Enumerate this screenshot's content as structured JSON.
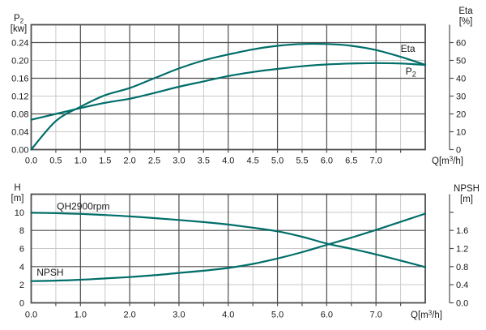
{
  "colors": {
    "curve": "#006e69",
    "grid_dark": "#4d4d4d",
    "grid_light": "#c9c9c9",
    "text": "#1a1a1a",
    "background": "#ffffff"
  },
  "chart_data": [
    {
      "type": "line",
      "name": "power-efficiency-vs-flow",
      "x": [
        0,
        0.5,
        1,
        1.5,
        2,
        2.5,
        3,
        3.5,
        4,
        4.5,
        5,
        5.5,
        6,
        6.5,
        7,
        7.5,
        8
      ],
      "x_axis": {
        "label": {
          "pre": "Q[m",
          "sup": "3",
          "post": "/h]"
        },
        "range": [
          0,
          8
        ],
        "tick_label_values": [
          0,
          0.5,
          1,
          1.5,
          2,
          2.5,
          3,
          3.5,
          4,
          4.5,
          5,
          5.5,
          6,
          6.5,
          7
        ],
        "tick_labels": [
          "0.0",
          "0.5",
          "1.0",
          "1.5",
          "2.0",
          "2.5",
          "3.0",
          "3.5",
          "4.0",
          "4.5",
          "5.0",
          "5.5",
          "6.0",
          "6.5",
          "7.0"
        ],
        "tick_marks": [
          0.5,
          1,
          1.5,
          2,
          2.5,
          3,
          3.5,
          4,
          4.5,
          5,
          5.5,
          6,
          6.5,
          7,
          7.5
        ]
      },
      "left_axis": {
        "title": {
          "base": "P",
          "sub": "2"
        },
        "unit": "[kw]",
        "range": [
          0,
          0.28
        ],
        "tick_values": [
          0,
          0.04,
          0.08,
          0.12,
          0.16,
          0.2,
          0.24
        ],
        "tick_labels": [
          "0.00",
          "0.04",
          "0.08",
          "0.12",
          "0.16",
          "0.20",
          "0.24"
        ]
      },
      "right_axis": {
        "title": "Eta",
        "unit": "[%]",
        "range": [
          0,
          70
        ],
        "tick_values": [
          0,
          10,
          20,
          30,
          40,
          50,
          60
        ],
        "tick_labels": [
          "0",
          "10",
          "20",
          "30",
          "40",
          "50",
          "60"
        ],
        "unlabeled_ticks": []
      },
      "grid": {
        "x_light": [
          0.5,
          1.5,
          2.5,
          3.5,
          4.5,
          5.5,
          6.5,
          7.5
        ],
        "x_dark": [
          1,
          2,
          3,
          4,
          5,
          6,
          7
        ],
        "y_light": [
          0.04,
          0.12,
          0.2
        ],
        "y_dark": [
          0.08,
          0.16,
          0.24
        ]
      },
      "series": [
        {
          "name": "Eta",
          "axis": "right",
          "label": {
            "base": "Eta"
          },
          "label_anchor": {
            "x": 7.5,
            "y": 54.8
          },
          "values": [
            0,
            16,
            24,
            30.5,
            34.5,
            40,
            45.5,
            50,
            53.3,
            56.2,
            58.2,
            59.2,
            59.2,
            58.2,
            55.8,
            52,
            47.5
          ]
        },
        {
          "name": "P2",
          "axis": "left",
          "label": {
            "base": "P",
            "sub": "2"
          },
          "label_anchor": {
            "x": 7.6,
            "y": 0.168
          },
          "values": [
            0.067,
            0.08,
            0.093,
            0.105,
            0.114,
            0.127,
            0.141,
            0.153,
            0.165,
            0.174,
            0.181,
            0.187,
            0.191,
            0.193,
            0.194,
            0.193,
            0.19
          ]
        }
      ]
    },
    {
      "type": "line",
      "name": "head-npsh-vs-flow",
      "x": [
        0,
        0.5,
        1,
        1.5,
        2,
        2.5,
        3,
        3.5,
        4,
        4.5,
        5,
        5.5,
        6,
        6.5,
        7,
        7.5,
        8
      ],
      "x_axis": {
        "label": {
          "pre": "Q[m",
          "sup": "3",
          "post": "/h]"
        },
        "range": [
          0,
          8
        ],
        "tick_label_values": [
          0,
          1,
          2,
          3,
          4,
          5,
          6,
          7
        ],
        "tick_labels": [
          "0.0",
          "1.0",
          "2.0",
          "3.0",
          "4.0",
          "5.0",
          "6.0",
          "7.0"
        ],
        "tick_marks": [
          0.5,
          1,
          1.5,
          2,
          2.5,
          3,
          3.5,
          4,
          4.5,
          5,
          5.5,
          6,
          6.5,
          7,
          7.5
        ]
      },
      "left_axis": {
        "title": {
          "base": "H"
        },
        "unit": "[m]",
        "range": [
          0,
          12
        ],
        "tick_values": [
          0,
          2,
          4,
          6,
          8,
          10
        ],
        "tick_labels": [
          "0",
          "2",
          "4",
          "6",
          "8",
          "10"
        ]
      },
      "right_axis": {
        "title": "NPSH",
        "unit": "[m]",
        "range": [
          0,
          2.4
        ],
        "tick_values": [
          0,
          0.4,
          0.8,
          1.2,
          1.6
        ],
        "tick_labels": [
          "0.0",
          "0.4",
          "0.8",
          "1.2",
          "1.6"
        ],
        "unlabeled_ticks": [
          2.0
        ]
      },
      "grid": {
        "x_light": [
          0.5,
          1.5,
          2.5,
          3.5,
          4.5,
          5.5,
          6.5,
          7.5
        ],
        "x_dark": [
          1,
          2,
          3,
          4,
          5,
          6,
          7
        ],
        "y_light": [
          2,
          6,
          10
        ],
        "y_dark": [
          4,
          8
        ]
      },
      "series": [
        {
          "name": "QH2900rpm",
          "axis": "left",
          "label": {
            "base": "QH2900rpm"
          },
          "label_anchor": {
            "x": 0.52,
            "y": 10.3
          },
          "values": [
            9.95,
            9.9,
            9.82,
            9.7,
            9.55,
            9.36,
            9.15,
            8.92,
            8.65,
            8.3,
            7.9,
            7.3,
            6.55,
            5.97,
            5.35,
            4.67,
            3.95
          ]
        },
        {
          "name": "NPSH",
          "axis": "right",
          "label": {
            "base": "NPSH"
          },
          "label_anchor": {
            "x": 0.11,
            "y": 0.6
          },
          "values": [
            0.48,
            0.49,
            0.51,
            0.54,
            0.57,
            0.61,
            0.66,
            0.71,
            0.77,
            0.86,
            0.98,
            1.12,
            1.28,
            1.44,
            1.61,
            1.79,
            1.97
          ]
        }
      ]
    }
  ]
}
